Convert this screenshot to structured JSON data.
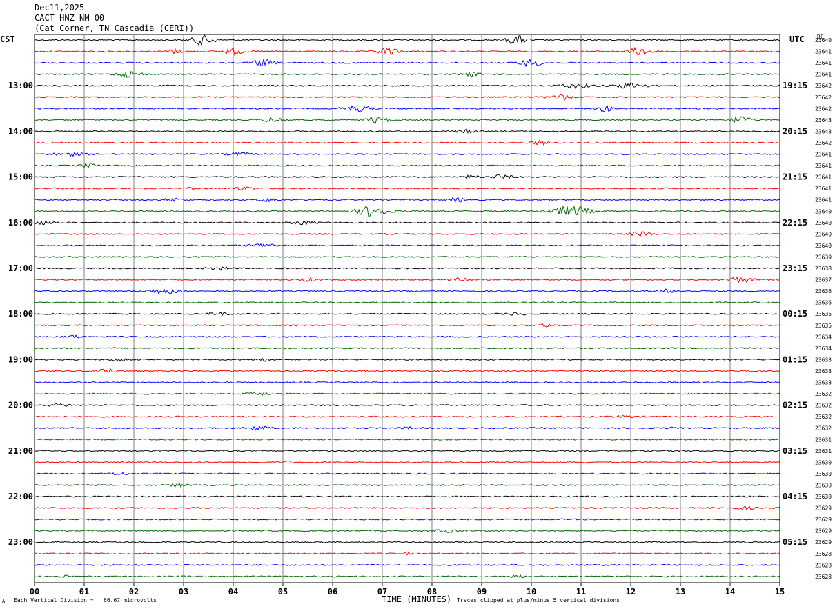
{
  "header": {
    "date": "Dec11,2025",
    "station": "CACT HNZ NM 00",
    "location": "(Cat Corner, TN Cascadia (CERI))"
  },
  "left_zone_label": "CST",
  "right_zone_label": "UTC",
  "dc_label": "DC",
  "footer": {
    "scale_note": "Each Vertical Division =   66.67 microvolts",
    "xlabel": "TIME (MINUTES)",
    "clip_note": "Traces clipped at plus/minus 5 vertical divisions",
    "corner_mark": "A"
  },
  "colors": {
    "line_cycle": [
      "#000000",
      "#ff0000",
      "#0000ff",
      "#006400"
    ],
    "grid": "#808080"
  },
  "chart_data": {
    "type": "line",
    "x_ticks": [
      "00",
      "01",
      "02",
      "03",
      "04",
      "05",
      "06",
      "07",
      "08",
      "09",
      "10",
      "11",
      "12",
      "13",
      "14",
      "15"
    ],
    "xlim": [
      0,
      15
    ],
    "left_hour_labels": [
      "13:00",
      "14:00",
      "15:00",
      "16:00",
      "17:00",
      "18:00",
      "19:00",
      "20:00",
      "21:00",
      "22:00",
      "23:00"
    ],
    "right_hour_labels": [
      "19:15",
      "20:15",
      "21:15",
      "22:15",
      "23:15",
      "00:15",
      "01:15",
      "02:15",
      "03:15",
      "04:15",
      "05:15"
    ],
    "dc_values": [
      "23640",
      "23641",
      "23641",
      "23641",
      "23642",
      "23642",
      "23642",
      "23643",
      "23643",
      "23642",
      "23641",
      "23641",
      "23641",
      "23641",
      "23641",
      "23640",
      "23640",
      "23640",
      "23640",
      "23639",
      "23638",
      "23637",
      "23636",
      "23636",
      "23635",
      "23635",
      "23634",
      "23634",
      "23633",
      "23633",
      "23633",
      "23632",
      "23632",
      "23632",
      "23632",
      "23631",
      "23631",
      "23630",
      "23630",
      "23630",
      "23630",
      "23629",
      "23629",
      "23629",
      "23629",
      "23628",
      "23628",
      "23628"
    ],
    "events": [
      [
        [
          3.4,
          6,
          0.2
        ],
        [
          9.7,
          4,
          0.2
        ]
      ],
      [
        [
          2.8,
          2,
          0.15
        ],
        [
          4.0,
          3,
          0.2
        ],
        [
          7.1,
          3.5,
          0.2
        ],
        [
          12.2,
          3.5,
          0.25
        ]
      ],
      [
        [
          4.6,
          3,
          0.2
        ],
        [
          10.0,
          3,
          0.25
        ]
      ],
      [
        [
          1.9,
          2.5,
          0.25
        ],
        [
          8.8,
          1.5,
          0.2
        ]
      ],
      [
        [
          10.9,
          2,
          0.3
        ],
        [
          12.0,
          2.5,
          0.3
        ]
      ],
      [
        [
          10.6,
          2.5,
          0.2
        ]
      ],
      [
        [
          6.5,
          2.5,
          0.3
        ],
        [
          11.5,
          3,
          0.15
        ]
      ],
      [
        [
          4.8,
          2,
          0.2
        ],
        [
          6.9,
          3,
          0.2
        ],
        [
          14.2,
          3.5,
          0.2
        ]
      ],
      [
        [
          8.7,
          1.5,
          0.2
        ]
      ],
      [
        [
          10.2,
          2,
          0.15
        ]
      ],
      [
        [
          0.7,
          1.5,
          0.3
        ],
        [
          4.1,
          1.5,
          0.2
        ]
      ],
      [
        [
          1.1,
          2,
          0.15
        ]
      ],
      [
        [
          8.8,
          1.5,
          0.15
        ],
        [
          9.4,
          2,
          0.2
        ]
      ],
      [
        [
          3.2,
          1,
          0.1
        ],
        [
          4.2,
          1.5,
          0.2
        ]
      ],
      [
        [
          2.8,
          1.5,
          0.2
        ],
        [
          4.7,
          1.5,
          0.2
        ],
        [
          8.5,
          2,
          0.15
        ]
      ],
      [
        [
          6.8,
          5,
          0.3
        ],
        [
          10.8,
          5,
          0.35
        ]
      ],
      [
        [
          0.1,
          1.5,
          0.3
        ],
        [
          5.4,
          1.5,
          0.25
        ]
      ],
      [
        [
          12.2,
          2,
          0.2
        ]
      ],
      [
        [
          4.6,
          1.5,
          0.3
        ]
      ],
      [
        [],
        []
      ],
      [
        [
          3.7,
          1.5,
          0.2
        ]
      ],
      [
        [
          5.5,
          1.5,
          0.2
        ],
        [
          8.5,
          2,
          0.2
        ],
        [
          14.2,
          2.5,
          0.25
        ]
      ],
      [
        [
          2.6,
          2.5,
          0.3
        ],
        [
          12.7,
          1.5,
          0.2
        ]
      ],
      [],
      [
        [
          3.7,
          1.2,
          0.2
        ],
        [
          9.7,
          1.2,
          0.2
        ]
      ],
      [
        [
          10.3,
          1.5,
          0.1
        ]
      ],
      [
        [
          0.8,
          1,
          0.2
        ]
      ],
      [],
      [
        [
          1.7,
          1.5,
          0.15
        ],
        [
          4.6,
          1.2,
          0.15
        ]
      ],
      [
        [
          1.4,
          2.5,
          0.2
        ],
        [
          14.5,
          1,
          0.1
        ]
      ],
      [
        [
          12.8,
          1,
          0.05
        ]
      ],
      [
        [
          2.3,
          1.5,
          0.05
        ],
        [
          4.5,
          1.5,
          0.2
        ]
      ],
      [
        [
          0.5,
          1.2,
          0.2
        ]
      ],
      [
        [
          11.9,
          1,
          0.2
        ]
      ],
      [
        [
          4.5,
          2,
          0.2
        ],
        [
          7.5,
          1,
          0.1
        ],
        [
          12.8,
          1,
          0.05
        ]
      ],
      [],
      [
        [
          13.0,
          0.8,
          0.05
        ]
      ],
      [
        [
          5.1,
          1.5,
          0.05
        ]
      ],
      [
        [
          1.7,
          1,
          0.2
        ]
      ],
      [
        [
          2.9,
          1.5,
          0.15
        ]
      ],
      [],
      [
        [
          14.3,
          1.2,
          0.2
        ]
      ],
      [],
      [
        [
          8.3,
          1.2,
          0.3
        ]
      ],
      [],
      [
        [
          7.5,
          1.5,
          0.05
        ]
      ],
      [],
      [
        [
          0.6,
          1.2,
          0.1
        ],
        [
          9.7,
          1.5,
          0.15
        ]
      ]
    ]
  }
}
